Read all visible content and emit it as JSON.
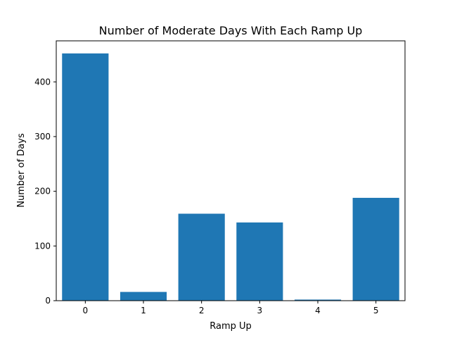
{
  "chart_data": {
    "type": "bar",
    "title": "Number of Moderate Days With Each Ramp Up",
    "xlabel": "Ramp Up",
    "ylabel": "Number of Days",
    "categories": [
      "0",
      "1",
      "2",
      "3",
      "4",
      "5"
    ],
    "values": [
      452,
      16,
      159,
      143,
      2,
      188
    ],
    "ylim": [
      0,
      475
    ],
    "xlim": [
      -0.5,
      5.5
    ],
    "yticks": [
      0,
      100,
      200,
      300,
      400
    ],
    "grid": false,
    "legend": "none",
    "bar_color": "#1f77b4"
  }
}
